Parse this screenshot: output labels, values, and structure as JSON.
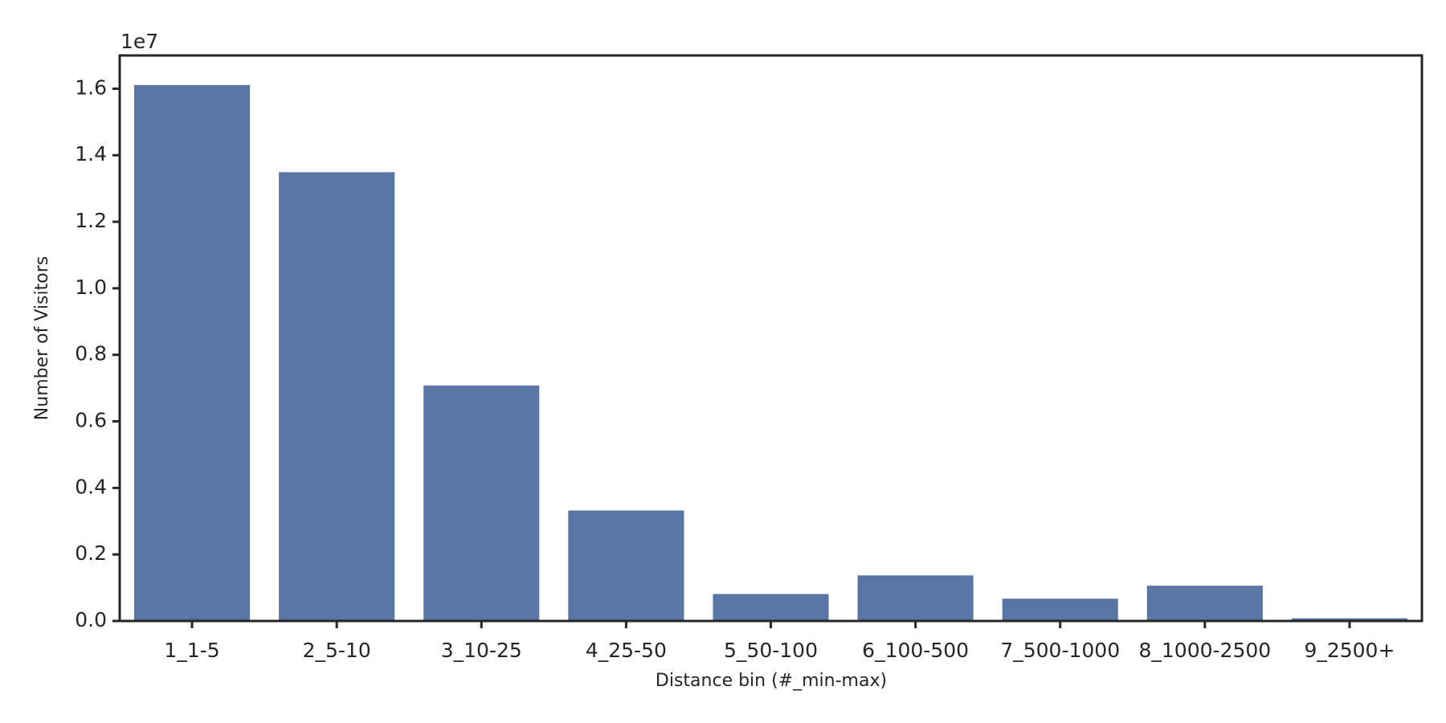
{
  "chart_data": {
    "type": "bar",
    "y_offset_label": "1e7",
    "xlabel": "Distance bin (#_min-max)",
    "ylabel": "Number of Visitors",
    "categories": [
      "1_1-5",
      "2_5-10",
      "3_10-25",
      "4_25-50",
      "5_50-100",
      "6_100-500",
      "7_500-1000",
      "8_1000-2500",
      "9_2500+"
    ],
    "values": [
      1.611,
      1.349,
      0.708,
      0.332,
      0.081,
      0.137,
      0.067,
      0.106,
      0.008
    ],
    "color": "#5975a4",
    "ylim": [
      0,
      1.7
    ],
    "yticks": [
      {
        "value": 0,
        "label": "0.0"
      },
      0.2,
      0.4,
      0.6,
      0.8,
      {
        "value": 1,
        "label": "1.0"
      },
      1.2,
      1.4,
      1.6
    ],
    "grid": false
  }
}
